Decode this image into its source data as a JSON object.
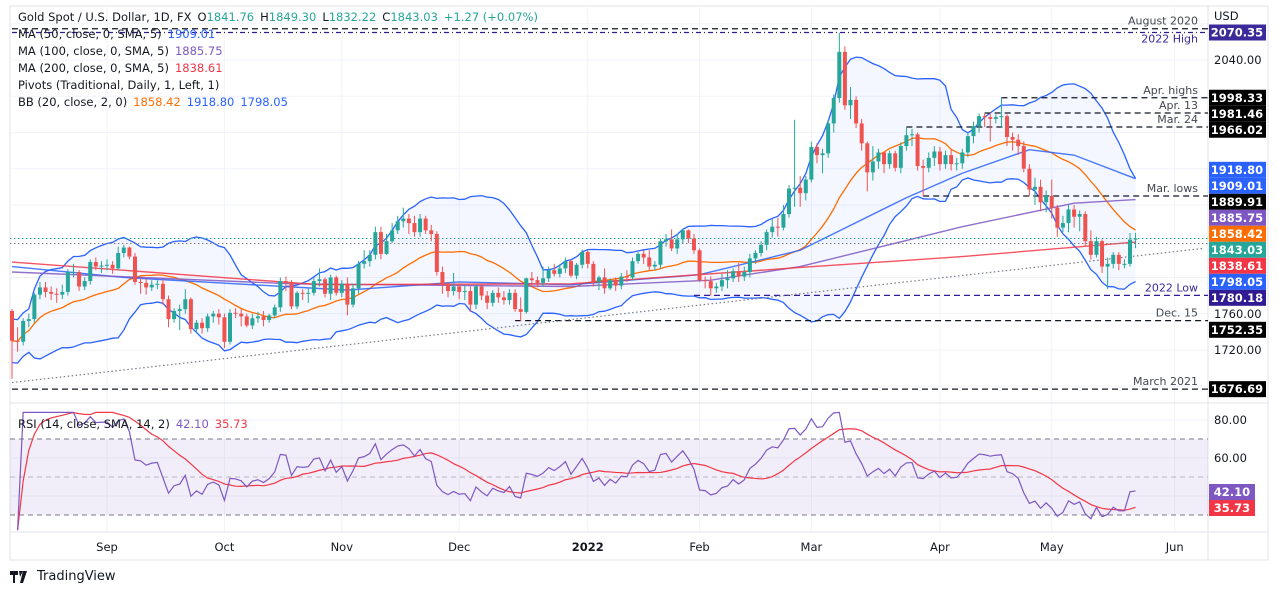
{
  "header": {
    "symbol": "Gold Spot / U.S. Dollar, 1D, FX",
    "open_label": "O",
    "open": "1841.76",
    "high_label": "H",
    "high": "1849.30",
    "low_label": "L",
    "low": "1832.22",
    "close_label": "C",
    "close": "1843.03",
    "change": "+1.27 (+0.07%)"
  },
  "indicators": [
    {
      "label": "MA (50, close, 0, SMA, 5)",
      "values": [
        "1909.01"
      ],
      "colors": [
        "#2962ff"
      ]
    },
    {
      "label": "MA (100, close, 0, SMA, 5)",
      "values": [
        "1885.75"
      ],
      "colors": [
        "#7e57c2"
      ]
    },
    {
      "label": "MA (200, close, 0, SMA, 5)",
      "values": [
        "1838.61"
      ],
      "colors": [
        "#f23645"
      ]
    },
    {
      "label": "Pivots (Traditional, Daily, 1, Left, 1)",
      "values": [],
      "colors": []
    },
    {
      "label": "BB (20, close, 2, 0)",
      "values": [
        "1858.42",
        "1918.80",
        "1798.05"
      ],
      "colors": [
        "#ff6d00",
        "#2962ff",
        "#2962ff"
      ]
    }
  ],
  "rsi_legend": {
    "label": "RSI (14, close, SMA, 14, 2)",
    "rsi": "42.10",
    "rsi_ma": "35.73"
  },
  "footer": {
    "brand": "TradingView"
  },
  "colors": {
    "up": "#26a69a",
    "down": "#ef5350",
    "ma50": "#2962ff",
    "ma100": "#7e57c2",
    "ma200": "#f23645",
    "bb_basis": "#ff6d00",
    "bb_band": "#2962ff",
    "rsi": "#7e57c2",
    "rsi_ma": "#f23645"
  },
  "chart_data": {
    "type": "candlestick",
    "currency_label": "USD",
    "ylim": [
      1662,
      2095
    ],
    "y_ticks": [
      "2040.00",
      "1760.00",
      "1720.00"
    ],
    "x_ticks": [
      {
        "label": "Sep",
        "bar": 17
      },
      {
        "label": "Oct",
        "bar": 38
      },
      {
        "label": "Nov",
        "bar": 59
      },
      {
        "label": "Dec",
        "bar": 80
      },
      {
        "label": "2022",
        "bar": 103,
        "bold": true
      },
      {
        "label": "Feb",
        "bar": 123
      },
      {
        "label": "Mar",
        "bar": 143
      },
      {
        "label": "Apr",
        "bar": 166
      },
      {
        "label": "May",
        "bar": 186
      },
      {
        "label": "Jun",
        "bar": 208
      }
    ],
    "open": [
      1763,
      1730,
      1729,
      1752,
      1754,
      1781,
      1789,
      1784,
      1782,
      1781,
      1784,
      1806,
      1806,
      1790,
      1796,
      1817,
      1812,
      1813,
      1814,
      1810,
      1827,
      1833,
      1823,
      1795,
      1794,
      1789,
      1792,
      1793,
      1776,
      1754,
      1763,
      1765,
      1776,
      1743,
      1750,
      1744,
      1757,
      1760,
      1756,
      1729,
      1761,
      1760,
      1757,
      1747,
      1755,
      1757,
      1753,
      1758,
      1767,
      1796,
      1795,
      1768,
      1783,
      1782,
      1783,
      1796,
      1798,
      1782,
      1800,
      1783,
      1793,
      1770,
      1788,
      1815,
      1818,
      1825,
      1850,
      1826,
      1840,
      1852,
      1862,
      1865,
      1860,
      1850,
      1865,
      1852,
      1848,
      1806,
      1792,
      1785,
      1790,
      1784,
      1785,
      1770,
      1790,
      1780,
      1772,
      1783,
      1778,
      1775,
      1783,
      1765,
      1762,
      1799,
      1797,
      1794,
      1799,
      1808,
      1804,
      1810,
      1818,
      1802,
      1814,
      1828,
      1815,
      1795,
      1800,
      1788,
      1797,
      1791,
      1801,
      1800,
      1818,
      1826,
      1822,
      1812,
      1814,
      1840,
      1842,
      1832,
      1842,
      1852,
      1843,
      1830,
      1797,
      1796,
      1788,
      1790,
      1797,
      1799,
      1807,
      1801,
      1806,
      1821,
      1827,
      1836,
      1850,
      1856,
      1855,
      1870,
      1898,
      1899,
      1893,
      1908,
      1944,
      1935,
      1937,
      1970,
      1998,
      2049,
      1990,
      1996,
      1970,
      1948,
      1916,
      1928,
      1938,
      1925,
      1937,
      1921,
      1945,
      1957,
      1958,
      1923,
      1921,
      1932,
      1939,
      1925,
      1935,
      1925,
      1926,
      1938,
      1956,
      1967,
      1978,
      1977,
      1975,
      1977,
      1978,
      1955,
      1952,
      1945,
      1920,
      1897,
      1900,
      1883,
      1890,
      1877,
      1855,
      1860,
      1875,
      1867,
      1870,
      1840,
      1825,
      1840,
      1812,
      1815,
      1825,
      1815,
      1815,
      1841.76
    ],
    "high": [
      1765,
      1745,
      1755,
      1760,
      1783,
      1795,
      1795,
      1790,
      1788,
      1792,
      1809,
      1815,
      1808,
      1800,
      1820,
      1822,
      1818,
      1820,
      1818,
      1834,
      1836,
      1834,
      1827,
      1799,
      1800,
      1797,
      1797,
      1798,
      1780,
      1766,
      1770,
      1787,
      1778,
      1753,
      1755,
      1760,
      1763,
      1765,
      1760,
      1765,
      1766,
      1765,
      1760,
      1760,
      1762,
      1763,
      1760,
      1770,
      1800,
      1801,
      1797,
      1785,
      1787,
      1788,
      1800,
      1810,
      1800,
      1803,
      1802,
      1797,
      1800,
      1793,
      1818,
      1830,
      1830,
      1856,
      1856,
      1848,
      1860,
      1868,
      1877,
      1870,
      1868,
      1870,
      1868,
      1858,
      1851,
      1812,
      1795,
      1805,
      1793,
      1791,
      1790,
      1792,
      1793,
      1785,
      1786,
      1789,
      1785,
      1787,
      1787,
      1778,
      1800,
      1806,
      1801,
      1812,
      1812,
      1815,
      1815,
      1822,
      1820,
      1816,
      1831,
      1830,
      1818,
      1802,
      1810,
      1799,
      1800,
      1805,
      1808,
      1822,
      1828,
      1830,
      1830,
      1818,
      1843,
      1848,
      1853,
      1848,
      1854,
      1853,
      1848,
      1832,
      1801,
      1801,
      1794,
      1804,
      1808,
      1810,
      1816,
      1812,
      1826,
      1830,
      1840,
      1853,
      1865,
      1866,
      1880,
      1902,
      1974,
      1912,
      1912,
      1950,
      1948,
      1942,
      1974,
      2002,
      2070,
      2055,
      2010,
      2000,
      1975,
      1950,
      1945,
      1942,
      1938,
      1940,
      1940,
      1949,
      1966,
      1964,
      1960,
      1930,
      1938,
      1945,
      1944,
      1940,
      1942,
      1932,
      1942,
      1960,
      1972,
      1981,
      1981,
      1982,
      1980,
      1998,
      1980,
      1960,
      1958,
      1950,
      1925,
      1910,
      1908,
      1896,
      1908,
      1880,
      1868,
      1880,
      1880,
      1874,
      1873,
      1852,
      1845,
      1842,
      1822,
      1828,
      1828,
      1820,
      1849,
      1849.3
    ],
    "low": [
      1688,
      1718,
      1725,
      1745,
      1750,
      1776,
      1778,
      1775,
      1772,
      1776,
      1780,
      1800,
      1785,
      1786,
      1792,
      1808,
      1805,
      1808,
      1804,
      1808,
      1822,
      1820,
      1792,
      1782,
      1781,
      1785,
      1787,
      1770,
      1745,
      1750,
      1742,
      1760,
      1738,
      1738,
      1738,
      1740,
      1750,
      1748,
      1722,
      1726,
      1755,
      1746,
      1745,
      1743,
      1750,
      1746,
      1750,
      1755,
      1762,
      1785,
      1765,
      1765,
      1775,
      1772,
      1780,
      1790,
      1778,
      1775,
      1780,
      1778,
      1758,
      1767,
      1782,
      1810,
      1812,
      1820,
      1820,
      1825,
      1838,
      1848,
      1855,
      1848,
      1845,
      1845,
      1848,
      1840,
      1802,
      1782,
      1778,
      1780,
      1776,
      1775,
      1762,
      1765,
      1775,
      1765,
      1768,
      1772,
      1770,
      1770,
      1762,
      1752,
      1760,
      1790,
      1789,
      1790,
      1795,
      1801,
      1800,
      1805,
      1800,
      1798,
      1810,
      1810,
      1790,
      1786,
      1782,
      1786,
      1785,
      1787,
      1795,
      1797,
      1815,
      1815,
      1808,
      1808,
      1810,
      1834,
      1829,
      1826,
      1838,
      1838,
      1826,
      1795,
      1788,
      1780,
      1783,
      1785,
      1788,
      1795,
      1795,
      1796,
      1800,
      1815,
      1823,
      1830,
      1844,
      1845,
      1852,
      1866,
      1878,
      1878,
      1885,
      1905,
      1926,
      1915,
      1932,
      1960,
      1993,
      1985,
      1975,
      1965,
      1940,
      1895,
      1907,
      1920,
      1915,
      1920,
      1917,
      1915,
      1940,
      1945,
      1918,
      1890,
      1916,
      1923,
      1918,
      1920,
      1918,
      1918,
      1920,
      1933,
      1948,
      1960,
      1966,
      1950,
      1970,
      1965,
      1945,
      1940,
      1935,
      1916,
      1890,
      1880,
      1873,
      1872,
      1865,
      1845,
      1850,
      1850,
      1855,
      1851,
      1835,
      1820,
      1822,
      1805,
      1787,
      1810,
      1808,
      1810,
      1812,
      1832.22
    ],
    "close": [
      1730,
      1729,
      1752,
      1754,
      1781,
      1789,
      1784,
      1782,
      1781,
      1784,
      1806,
      1806,
      1790,
      1796,
      1817,
      1812,
      1813,
      1814,
      1810,
      1827,
      1833,
      1823,
      1795,
      1794,
      1789,
      1792,
      1793,
      1776,
      1754,
      1763,
      1765,
      1776,
      1743,
      1750,
      1744,
      1757,
      1760,
      1756,
      1729,
      1761,
      1760,
      1757,
      1747,
      1755,
      1757,
      1753,
      1758,
      1767,
      1796,
      1795,
      1768,
      1783,
      1782,
      1783,
      1796,
      1798,
      1782,
      1800,
      1783,
      1793,
      1770,
      1788,
      1815,
      1818,
      1825,
      1850,
      1826,
      1840,
      1852,
      1862,
      1865,
      1860,
      1850,
      1865,
      1852,
      1848,
      1806,
      1792,
      1785,
      1790,
      1784,
      1785,
      1770,
      1790,
      1780,
      1772,
      1783,
      1778,
      1775,
      1783,
      1765,
      1762,
      1799,
      1797,
      1794,
      1799,
      1808,
      1804,
      1810,
      1818,
      1802,
      1814,
      1828,
      1815,
      1795,
      1800,
      1788,
      1797,
      1791,
      1801,
      1800,
      1818,
      1826,
      1822,
      1812,
      1814,
      1840,
      1842,
      1832,
      1842,
      1852,
      1843,
      1830,
      1797,
      1796,
      1788,
      1790,
      1797,
      1799,
      1807,
      1801,
      1806,
      1821,
      1827,
      1836,
      1850,
      1856,
      1855,
      1870,
      1898,
      1899,
      1893,
      1908,
      1944,
      1935,
      1937,
      1970,
      1998,
      2049,
      1990,
      1996,
      1970,
      1948,
      1916,
      1928,
      1938,
      1925,
      1937,
      1921,
      1945,
      1957,
      1958,
      1923,
      1921,
      1932,
      1939,
      1925,
      1935,
      1925,
      1926,
      1938,
      1956,
      1967,
      1978,
      1977,
      1975,
      1977,
      1978,
      1955,
      1952,
      1945,
      1920,
      1897,
      1900,
      1883,
      1890,
      1877,
      1855,
      1860,
      1875,
      1867,
      1870,
      1840,
      1825,
      1840,
      1812,
      1815,
      1825,
      1815,
      1815,
      1841.76,
      1843.03
    ],
    "moving_averages": [
      {
        "name": "MA 50",
        "color": "#2962ff",
        "points": [
          [
            0,
            1812
          ],
          [
            20,
            1800
          ],
          [
            40,
            1793
          ],
          [
            60,
            1786
          ],
          [
            80,
            1795
          ],
          [
            100,
            1792
          ],
          [
            123,
            1803
          ],
          [
            141,
            1830
          ],
          [
            160,
            1888
          ],
          [
            170,
            1915
          ],
          [
            182,
            1941
          ],
          [
            190,
            1935
          ],
          [
            201,
            1909
          ]
        ]
      },
      {
        "name": "MA 100",
        "color": "#7e57c2",
        "points": [
          [
            0,
            1806
          ],
          [
            50,
            1793
          ],
          [
            100,
            1790
          ],
          [
            125,
            1797
          ],
          [
            141,
            1812
          ],
          [
            170,
            1856
          ],
          [
            190,
            1882
          ],
          [
            201,
            1886
          ]
        ]
      },
      {
        "name": "MA 200",
        "color": "#f23645",
        "points": [
          [
            0,
            1817
          ],
          [
            55,
            1792
          ],
          [
            100,
            1793
          ],
          [
            141,
            1811
          ],
          [
            170,
            1823
          ],
          [
            201,
            1839
          ]
        ]
      }
    ],
    "bollinger": {
      "period": 20,
      "stddev": 2
    },
    "levels": [
      {
        "label": "August 2020",
        "price": 2074.5,
        "style": "dashed",
        "color": "#131722",
        "from_bar": 0,
        "axis": ""
      },
      {
        "label": "2022 High",
        "price": 2070.35,
        "style": "dashdot",
        "color": "#311b92",
        "from_bar": 0,
        "axis": "2070.35",
        "axis_bg": "#3d2a9a"
      },
      {
        "label": "Apr. highs",
        "price": 1998.33,
        "style": "dashed",
        "color": "#131722",
        "from_bar": 177,
        "axis": "1998.33",
        "axis_bg": "#000000"
      },
      {
        "label": "Apr. 13",
        "price": 1981.46,
        "style": "dashed",
        "color": "#131722",
        "from_bar": 174,
        "axis": "1981.46",
        "axis_bg": "#000000"
      },
      {
        "label": "Mar. 24",
        "price": 1966.02,
        "style": "dashed",
        "color": "#131722",
        "from_bar": 160,
        "axis": "1966.02",
        "axis_bg": "#000000"
      },
      {
        "label": "Mar. lows",
        "price": 1889.91,
        "style": "dashed",
        "color": "#131722",
        "from_bar": 163,
        "axis": "1889.91",
        "axis_bg": "#000000"
      },
      {
        "label": "2022 Low",
        "price": 1780.18,
        "style": "dashed",
        "color": "#311b92",
        "from_bar": 122,
        "axis": "1780.18",
        "axis_bg": "#311b92"
      },
      {
        "label": "Dec. 15",
        "price": 1752.35,
        "style": "dashed",
        "color": "#131722",
        "from_bar": 90,
        "axis": "1752.35",
        "axis_bg": "#000000"
      },
      {
        "label": "March 2021",
        "price": 1676.69,
        "style": "dashed",
        "color": "#131722",
        "from_bar": 0,
        "axis": "1676.69",
        "axis_bg": "#000000"
      }
    ],
    "price_lines": [
      {
        "price": 1843.03,
        "color": "#26a69a",
        "style": "dotted"
      },
      {
        "price": 1837.5,
        "color": "#787b86",
        "style": "dotted"
      }
    ],
    "trendline": {
      "from_bar": 0,
      "from_price": 1684,
      "to_bar": 213,
      "to_price": 1832,
      "style": "dotted",
      "color": "#787b86"
    },
    "axis_value_labels": [
      {
        "text": "1918.80",
        "price": 1918.8,
        "bg": "#2962ff"
      },
      {
        "text": "1909.01",
        "price": 1909.01,
        "bg": "#2962ff"
      },
      {
        "text": "1885.75",
        "price": 1885.75,
        "bg": "#7e57c2"
      },
      {
        "text": "1858.42",
        "price": 1858.42,
        "bg": "#ff6d00"
      },
      {
        "text": "1843.03",
        "price": 1843.03,
        "bg": "#26a69a"
      },
      {
        "text": "1838.61",
        "price": 1838.61,
        "bg": "#f23645"
      },
      {
        "text": "1798.05",
        "price": 1798.05,
        "bg": "#2962ff"
      }
    ],
    "rsi": {
      "period": 14,
      "ma_period": 14,
      "ylim": [
        20,
        86
      ],
      "y_ticks": [
        "80.00",
        "60.00"
      ],
      "band": [
        30,
        70
      ],
      "midline": 50,
      "last_rsi": "42.10",
      "last_ma": "35.73"
    }
  }
}
